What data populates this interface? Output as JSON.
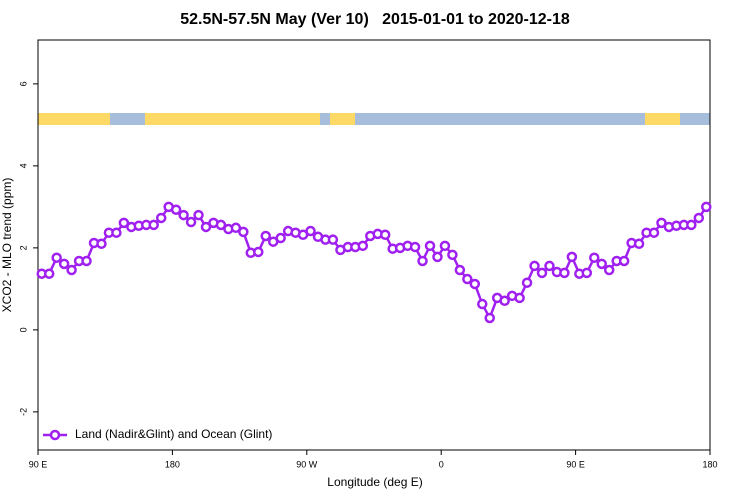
{
  "chart_data": {
    "type": "line",
    "title": "52.5N-57.5N May (Ver 10)   2015-01-01 to 2020-12-18",
    "x_label": "Longitude (deg E)",
    "y_label": "XCO2 - MLO trend (ppm)",
    "x": [
      92.5,
      97.5,
      102.5,
      107.5,
      112.5,
      117.5,
      122.5,
      127.5,
      132.5,
      137.5,
      142.5,
      147.5,
      152.5,
      157.5,
      162.5,
      167.5,
      172.5,
      177.5,
      182.5,
      187.5,
      192.5,
      197.5,
      202.5,
      207.5,
      212.5,
      217.5,
      222.5,
      227.5,
      232.5,
      237.5,
      242.5,
      247.5,
      252.5,
      257.5,
      262.5,
      267.5,
      272.5,
      277.5,
      282.5,
      287.5,
      292.5,
      297.5,
      302.5,
      307.5,
      312.5,
      317.5,
      322.5,
      327.5,
      332.5,
      337.5,
      342.5,
      347.5,
      352.5,
      357.5,
      362.5,
      367.5,
      372.5,
      377.5,
      382.5,
      387.5,
      392.5,
      397.5,
      402.5,
      407.5,
      412.5,
      417.5,
      422.5,
      427.5,
      432.5,
      437.5,
      442.5,
      447.5,
      452.5,
      457.5,
      462.5,
      467.5,
      472.5,
      477.5,
      482.5,
      487.5,
      492.5,
      497.5,
      502.5,
      507.5,
      512.5,
      517.5,
      522.5,
      527.5,
      532.5,
      537.5
    ],
    "series": [
      {
        "name": "Land (Nadir&Glint) and Ocean (Glint)",
        "color": "#a020f0",
        "values": [
          1.37,
          1.37,
          1.76,
          1.61,
          1.46,
          1.68,
          1.68,
          2.12,
          2.1,
          2.37,
          2.37,
          2.61,
          2.51,
          2.54,
          2.56,
          2.56,
          2.73,
          3.0,
          2.93,
          2.8,
          2.63,
          2.8,
          2.51,
          2.61,
          2.56,
          2.46,
          2.49,
          2.39,
          1.88,
          1.9,
          2.29,
          2.15,
          2.24,
          2.41,
          2.37,
          2.32,
          2.41,
          2.27,
          2.2,
          2.2,
          1.95,
          2.02,
          2.02,
          2.05,
          2.29,
          2.34,
          2.32,
          1.98,
          2.0,
          2.05,
          2.02,
          1.68,
          2.05,
          1.78,
          2.05,
          1.83,
          1.46,
          1.24,
          1.12,
          0.63,
          0.29,
          0.78,
          0.71,
          0.83,
          0.78,
          1.15,
          1.56,
          1.39,
          1.56,
          1.41,
          1.39,
          1.78,
          1.37,
          1.39,
          1.76,
          1.61,
          1.46,
          1.68,
          1.68,
          2.12,
          2.1,
          2.37,
          2.37,
          2.61,
          2.51,
          2.54,
          2.56,
          2.56,
          2.73,
          3.0
        ]
      }
    ],
    "xlim": [
      90,
      540
    ],
    "xticks": [
      {
        "value": 90,
        "label": "90 E"
      },
      180,
      {
        "value": 270,
        "label": "90 W"
      },
      {
        "value": 360,
        "label": "0"
      },
      {
        "value": 450,
        "label": "90 E"
      },
      {
        "value": 540,
        "label": "180"
      }
    ],
    "ylim": [
      -2.93,
      7.07
    ],
    "yticks": [
      -2,
      0,
      2,
      4,
      6
    ],
    "legend": "bottom-left"
  }
}
